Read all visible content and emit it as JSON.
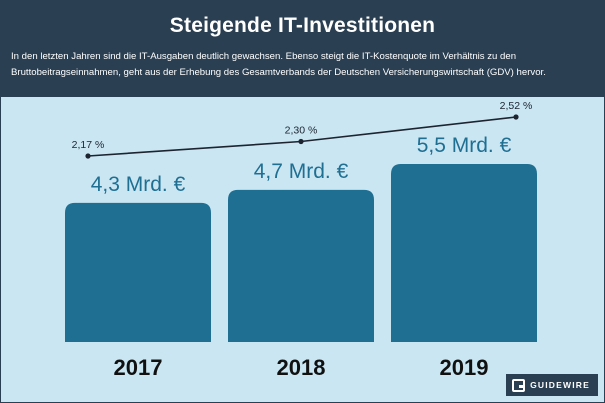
{
  "header": {
    "title": "Steigende IT-Investitionen",
    "subtitle": "In den letzten Jahren sind die IT-Ausgaben deutlich gewachsen. Ebenso steigt die IT-Kostenquote im Verhältnis zu den Bruttobeitragseinnahmen, geht aus der Erhebung des Gesamtverbands der Deutschen Versicherungswirtschaft (GDV) hervor."
  },
  "logo": {
    "text": "GUIDEWIRE"
  },
  "colors": {
    "header_bg": "#2a3f52",
    "panel_bg": "#c9e6f2",
    "bar_fill": "#1f6f93",
    "value_label": "#1f6f93",
    "line": "#1d2430",
    "year_label": "#111111"
  },
  "chart_data": {
    "type": "bar",
    "categories": [
      "2017",
      "2018",
      "2019"
    ],
    "series": [
      {
        "values": [
          4.3,
          4.7,
          5.5
        ],
        "labels": [
          "4,3 Mrd.  €",
          "4,7 Mrd. €",
          "5,5 Mrd. €"
        ]
      }
    ],
    "line_series": {
      "type": "line",
      "values": [
        2.17,
        2.3,
        2.52
      ],
      "labels": [
        "2,17 %",
        "2,30 %",
        "2,52 %"
      ]
    },
    "grid": false,
    "legend": "none"
  }
}
